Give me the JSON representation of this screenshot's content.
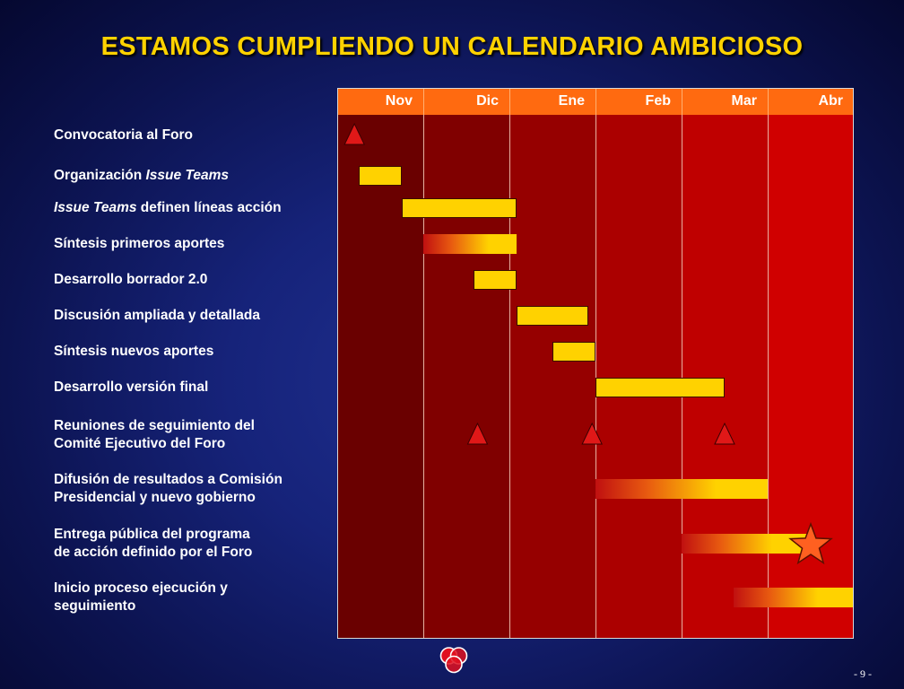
{
  "title": "ESTAMOS CUMPLIENDO UN CALENDARIO AMBICIOSO",
  "months": [
    "Nov",
    "Dic",
    "Ene",
    "Feb",
    "Mar",
    "Abr"
  ],
  "colors": {
    "month_columns": [
      "#6a0000",
      "#800000",
      "#960000",
      "#ab0000",
      "#bf0000",
      "#d00000"
    ],
    "header": "#ff6a10",
    "bar": "#ffd200",
    "title": "#ffd200",
    "milestone": "#e01818",
    "star": "#ff6020"
  },
  "tasks": [
    {
      "label_parts": [
        {
          "text": "Convocatoria al Foro",
          "italic": false
        }
      ]
    },
    {
      "label_parts": [
        {
          "text": "Organización ",
          "italic": false
        },
        {
          "text": "Issue Teams",
          "italic": true
        }
      ]
    },
    {
      "label_parts": [
        {
          "text": "Issue Teams",
          "italic": true
        },
        {
          "text": " definen líneas acción",
          "italic": false
        }
      ]
    },
    {
      "label_parts": [
        {
          "text": "Síntesis primeros aportes",
          "italic": false
        }
      ]
    },
    {
      "label_parts": [
        {
          "text": "Desarrollo borrador 2.0",
          "italic": false
        }
      ]
    },
    {
      "label_parts": [
        {
          "text": "Discusión ampliada y detallada",
          "italic": false
        }
      ]
    },
    {
      "label_parts": [
        {
          "text": "Síntesis nuevos aportes",
          "italic": false
        }
      ]
    },
    {
      "label_parts": [
        {
          "text": "Desarrollo versión final",
          "italic": false
        }
      ]
    },
    {
      "label_parts": [
        {
          "text": "Reuniones de seguimiento del",
          "italic": false
        },
        {
          "text": "Comité  Ejecutivo del Foro",
          "italic": false,
          "newline": true
        }
      ]
    },
    {
      "label_parts": [
        {
          "text": "Difusión de resultados a Comisión",
          "italic": false
        },
        {
          "text": "Presidencial y nuevo gobierno",
          "italic": false,
          "newline": true
        }
      ]
    },
    {
      "label_parts": [
        {
          "text": "Entrega pública del programa",
          "italic": false
        },
        {
          "text": "de acción definido por el Foro",
          "italic": false,
          "newline": true
        }
      ]
    },
    {
      "label_parts": [
        {
          "text": "Inicio proceso ejecución y",
          "italic": false
        },
        {
          "text": "seguimiento",
          "italic": false,
          "newline": true
        }
      ]
    }
  ],
  "schedule": [
    {
      "task": 0,
      "kind": "milestone",
      "at": 0.2
    },
    {
      "task": 1,
      "kind": "solid",
      "start": 0.25,
      "end": 0.75
    },
    {
      "task": 2,
      "kind": "solid",
      "start": 0.75,
      "end": 2.08
    },
    {
      "task": 3,
      "kind": "gradient",
      "start": 1.0,
      "end": 2.08
    },
    {
      "task": 4,
      "kind": "solid",
      "start": 1.58,
      "end": 2.08
    },
    {
      "task": 5,
      "kind": "solid",
      "start": 2.08,
      "end": 2.92
    },
    {
      "task": 6,
      "kind": "solid",
      "start": 2.5,
      "end": 3.0
    },
    {
      "task": 7,
      "kind": "solid",
      "start": 3.0,
      "end": 4.5
    },
    {
      "task": 8,
      "kind": "milestone",
      "at": 1.63
    },
    {
      "task": 8,
      "kind": "milestone",
      "at": 2.96
    },
    {
      "task": 8,
      "kind": "milestone",
      "at": 4.5
    },
    {
      "task": 9,
      "kind": "gradient",
      "start": 3.0,
      "end": 5.0
    },
    {
      "task": 10,
      "kind": "gradient",
      "start": 4.0,
      "end": 5.5
    },
    {
      "task": 10,
      "kind": "star",
      "at": 5.5
    },
    {
      "task": 11,
      "kind": "gradient",
      "start": 4.6,
      "end": 6.0
    }
  ],
  "page_number": "- 9 -",
  "logo_icon": "three-circles-logo"
}
